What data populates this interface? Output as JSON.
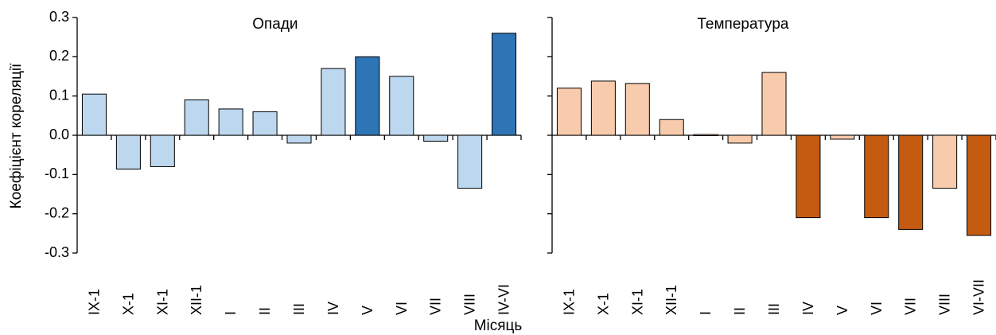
{
  "chart_data": {
    "type": "bar",
    "ylabel": "Коефіцієнт кореляції",
    "xlabel": "Місяць",
    "ylim": [
      -0.3,
      0.3
    ],
    "yticks": [
      -0.3,
      -0.2,
      -0.1,
      0.0,
      0.1,
      0.2,
      0.3
    ],
    "ytick_labels": [
      "-0.3",
      "-0.2",
      "-0.1",
      "0.0",
      "0.1",
      "0.2",
      "0.3"
    ],
    "panels": [
      {
        "title": "Опади",
        "categories": [
          "IX-1",
          "X-1",
          "XI-1",
          "XII-1",
          "I",
          "II",
          "III",
          "IV",
          "V",
          "VI",
          "VII",
          "VIII",
          "IV-VI"
        ],
        "values": [
          0.105,
          -0.086,
          -0.08,
          0.09,
          0.067,
          0.06,
          -0.02,
          0.17,
          0.2,
          0.15,
          -0.015,
          -0.135,
          0.26
        ],
        "highlight": [
          false,
          false,
          false,
          false,
          false,
          false,
          false,
          false,
          true,
          false,
          false,
          false,
          true
        ],
        "color_light": "#bdd7ee",
        "color_dark": "#2e75b6"
      },
      {
        "title": "Температура",
        "categories": [
          "IX-1",
          "X-1",
          "XI-1",
          "XII-1",
          "I",
          "II",
          "III",
          "IV",
          "V",
          "VI",
          "VII",
          "VIII",
          "VI-VII"
        ],
        "values": [
          0.12,
          0.138,
          0.132,
          0.04,
          0.002,
          -0.02,
          0.16,
          -0.21,
          -0.01,
          -0.21,
          -0.24,
          -0.135,
          -0.255
        ],
        "highlight": [
          false,
          false,
          false,
          false,
          false,
          false,
          false,
          true,
          false,
          true,
          true,
          false,
          true
        ],
        "color_light": "#f8cbad",
        "color_dark": "#c55a11"
      }
    ]
  }
}
